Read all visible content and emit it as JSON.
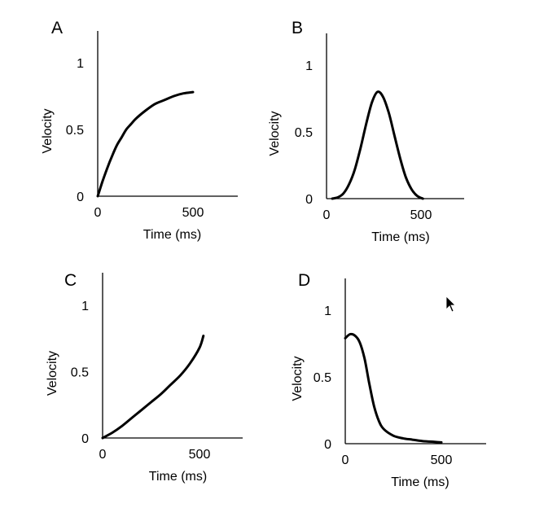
{
  "chart_data": [
    {
      "type": "line",
      "panel_label": "A",
      "xlabel": "Time (ms)",
      "ylabel": "Velocity",
      "xticks": [
        "0",
        "500"
      ],
      "yticks": [
        "0",
        "0.5",
        "1"
      ],
      "xlim": [
        0,
        700
      ],
      "ylim": [
        0,
        1.25
      ],
      "series": [
        {
          "x": [
            0,
            25,
            50,
            75,
            100,
            125,
            150,
            175,
            200,
            250,
            300,
            350,
            400,
            450,
            500
          ],
          "y": [
            0,
            0.11,
            0.21,
            0.3,
            0.38,
            0.44,
            0.5,
            0.54,
            0.58,
            0.64,
            0.69,
            0.72,
            0.75,
            0.77,
            0.78
          ]
        }
      ]
    },
    {
      "type": "line",
      "panel_label": "B",
      "xlabel": "Time (ms)",
      "ylabel": "Velocity",
      "xticks": [
        "0",
        "500"
      ],
      "yticks": [
        "0",
        "0.5",
        "1"
      ],
      "xlim": [
        0,
        700
      ],
      "ylim": [
        0,
        1.25
      ],
      "series": [
        {
          "x": [
            30,
            60,
            90,
            120,
            150,
            180,
            210,
            240,
            270,
            300,
            330,
            360,
            390,
            420,
            450,
            480,
            510
          ],
          "y": [
            0,
            0.01,
            0.04,
            0.11,
            0.22,
            0.38,
            0.56,
            0.72,
            0.8,
            0.76,
            0.64,
            0.47,
            0.3,
            0.16,
            0.07,
            0.02,
            0
          ]
        }
      ]
    },
    {
      "type": "line",
      "panel_label": "C",
      "xlabel": "Time (ms)",
      "ylabel": "Velocity",
      "xticks": [
        "0",
        "500"
      ],
      "yticks": [
        "0",
        "0.5",
        "1"
      ],
      "xlim": [
        0,
        700
      ],
      "ylim": [
        0,
        1.25
      ],
      "series": [
        {
          "x": [
            0,
            50,
            100,
            150,
            200,
            250,
            300,
            350,
            400,
            450,
            500,
            520
          ],
          "y": [
            0,
            0.04,
            0.09,
            0.15,
            0.21,
            0.27,
            0.33,
            0.4,
            0.47,
            0.56,
            0.68,
            0.77
          ]
        }
      ]
    },
    {
      "type": "line",
      "panel_label": "D",
      "xlabel": "Time (ms)",
      "ylabel": "Velocity",
      "xticks": [
        "0",
        "500"
      ],
      "yticks": [
        "0",
        "0.5",
        "1"
      ],
      "xlim": [
        0,
        700
      ],
      "ylim": [
        0,
        1.25
      ],
      "series": [
        {
          "x": [
            0,
            25,
            50,
            75,
            100,
            125,
            150,
            175,
            200,
            250,
            300,
            350,
            400,
            450,
            500
          ],
          "y": [
            0.79,
            0.82,
            0.81,
            0.76,
            0.64,
            0.45,
            0.28,
            0.17,
            0.11,
            0.06,
            0.04,
            0.03,
            0.02,
            0.015,
            0.01
          ]
        }
      ]
    }
  ]
}
